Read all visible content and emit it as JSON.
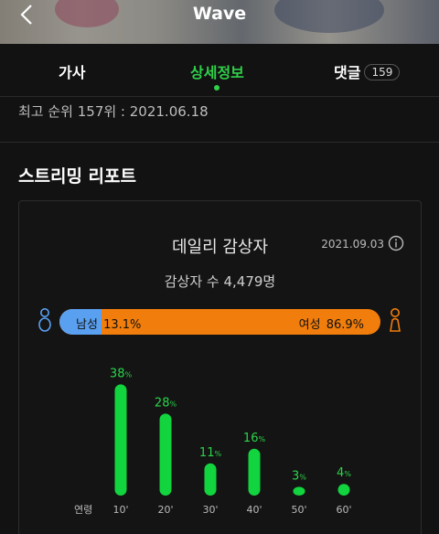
{
  "header": {
    "title": "Wave"
  },
  "tabs": [
    {
      "label": "가사"
    },
    {
      "label": "상세정보",
      "active": true
    },
    {
      "label": "댓글",
      "count": "159"
    }
  ],
  "rank_text": "최고 순위 157위 : 2021.06.18",
  "section_title": "스트리밍 리포트",
  "report": {
    "title": "데일리 감상자",
    "date": "2021.09.03",
    "listeners": "감상자 수 4,479명",
    "gender": {
      "male_label": "남성",
      "male_pct": "13.1%",
      "male_value": 13.1,
      "female_label": "여성",
      "female_pct": "86.9%",
      "female_value": 86.9
    }
  },
  "chart_data": {
    "type": "bar",
    "xlabel": "연령",
    "categories": [
      "10'",
      "20'",
      "30'",
      "40'",
      "50'",
      "60'"
    ],
    "values": [
      38,
      28,
      11,
      16,
      3,
      4
    ],
    "unit": "%",
    "ylim": [
      0,
      40
    ]
  },
  "colors": {
    "accent": "#30d04a",
    "male": "#5aa0f0",
    "female": "#f07d0c",
    "bar": "#12d43e"
  }
}
